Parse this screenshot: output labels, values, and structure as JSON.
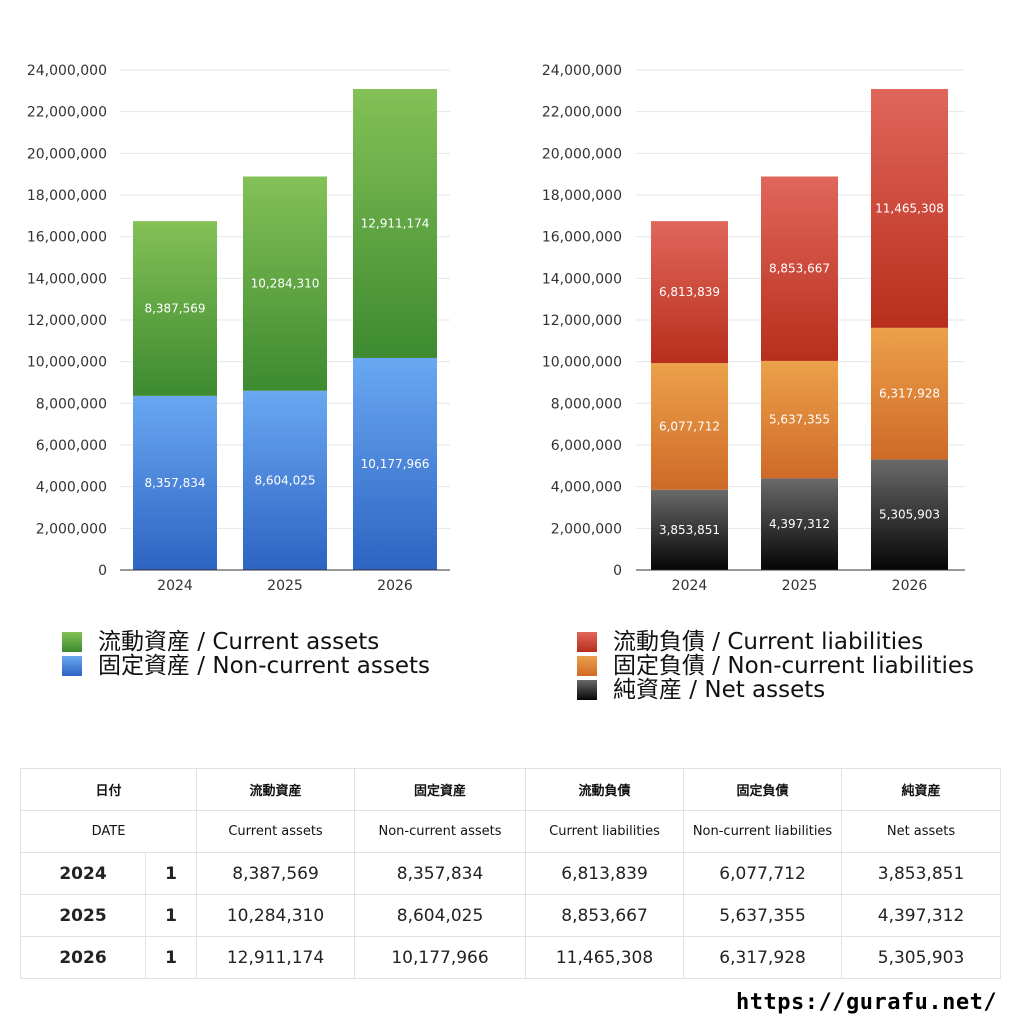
{
  "chart_data": [
    {
      "type": "bar",
      "stacked": true,
      "categories": [
        "2024",
        "2025",
        "2026"
      ],
      "ylim": [
        0,
        24000000
      ],
      "yticks": [
        0,
        2000000,
        4000000,
        6000000,
        8000000,
        10000000,
        12000000,
        14000000,
        16000000,
        18000000,
        20000000,
        22000000,
        24000000
      ],
      "ytick_labels": [
        "0",
        "2,000,000",
        "4,000,000",
        "6,000,000",
        "8,000,000",
        "10,000,000",
        "12,000,000",
        "14,000,000",
        "16,000,000",
        "18,000,000",
        "20,000,000",
        "22,000,000",
        "24,000,000"
      ],
      "grid": true,
      "legend_position": "bottom",
      "series": [
        {
          "name": "固定資産 / Non-current assets",
          "values": [
            8357834,
            8604025,
            10177966
          ],
          "labels": [
            "8,357,834",
            "8,604,025",
            "10,177,966"
          ],
          "color_top": "#6aa8f2",
          "color_bottom": "#2d63c2"
        },
        {
          "name": "流動資産 / Current assets",
          "values": [
            8387569,
            10284310,
            12911174
          ],
          "labels": [
            "8,387,569",
            "10,284,310",
            "12,911,174"
          ],
          "color_top": "#84c157",
          "color_bottom": "#3d8a30"
        }
      ],
      "legend": [
        {
          "label": "流動資産 / Current assets",
          "color": "#4e9e3a"
        },
        {
          "label": "固定資産 / Non-current assets",
          "color": "#3f7fd9"
        }
      ]
    },
    {
      "type": "bar",
      "stacked": true,
      "categories": [
        "2024",
        "2025",
        "2026"
      ],
      "ylim": [
        0,
        24000000
      ],
      "yticks": [
        0,
        2000000,
        4000000,
        6000000,
        8000000,
        10000000,
        12000000,
        14000000,
        16000000,
        18000000,
        20000000,
        22000000,
        24000000
      ],
      "ytick_labels": [
        "0",
        "2,000,000",
        "4,000,000",
        "6,000,000",
        "8,000,000",
        "10,000,000",
        "12,000,000",
        "14,000,000",
        "16,000,000",
        "18,000,000",
        "20,000,000",
        "22,000,000",
        "24,000,000"
      ],
      "grid": true,
      "legend_position": "bottom",
      "series": [
        {
          "name": "純資産 / Net assets",
          "values": [
            3853851,
            4397312,
            5305903
          ],
          "labels": [
            "3,853,851",
            "4,397,312",
            "5,305,903"
          ],
          "color_top": "#6a6a6a",
          "color_bottom": "#050505"
        },
        {
          "name": "固定負債 / Non-current liabilities",
          "values": [
            6077712,
            5637355,
            6317928
          ],
          "labels": [
            "6,077,712",
            "5,637,355",
            "6,317,928"
          ],
          "color_top": "#eca14a",
          "color_bottom": "#cf6a28"
        },
        {
          "name": "流動負債 / Current liabilities",
          "values": [
            6813839,
            8853667,
            11465308
          ],
          "labels": [
            "6,813,839",
            "8,853,667",
            "11,465,308"
          ],
          "color_top": "#e0675b",
          "color_bottom": "#b82e1c"
        }
      ],
      "legend": [
        {
          "label": "流動負債 / Current liabilities",
          "color": "#d5463a"
        },
        {
          "label": "固定負債 / Non-current liabilities",
          "color": "#e88b3a"
        },
        {
          "label": "純資産 / Net assets",
          "color": "#222222"
        }
      ]
    }
  ],
  "table": {
    "header_jp": [
      "日付",
      "流動資産",
      "固定資産",
      "流動負債",
      "固定負債",
      "純資産"
    ],
    "header_en": [
      "DATE",
      "Current assets",
      "Non-current assets",
      "Current liabilities",
      "Non-current liabilities",
      "Net assets"
    ],
    "rows": [
      {
        "year": "2024",
        "index": "1",
        "values": [
          "8,387,569",
          "8,357,834",
          "6,813,839",
          "6,077,712",
          "3,853,851"
        ]
      },
      {
        "year": "2025",
        "index": "1",
        "values": [
          "10,284,310",
          "8,604,025",
          "8,853,667",
          "5,637,355",
          "4,397,312"
        ]
      },
      {
        "year": "2026",
        "index": "1",
        "values": [
          "12,911,174",
          "10,177,966",
          "11,465,308",
          "6,317,928",
          "5,305,903"
        ]
      }
    ]
  },
  "footer": {
    "url": "https://gurafu.net/"
  }
}
